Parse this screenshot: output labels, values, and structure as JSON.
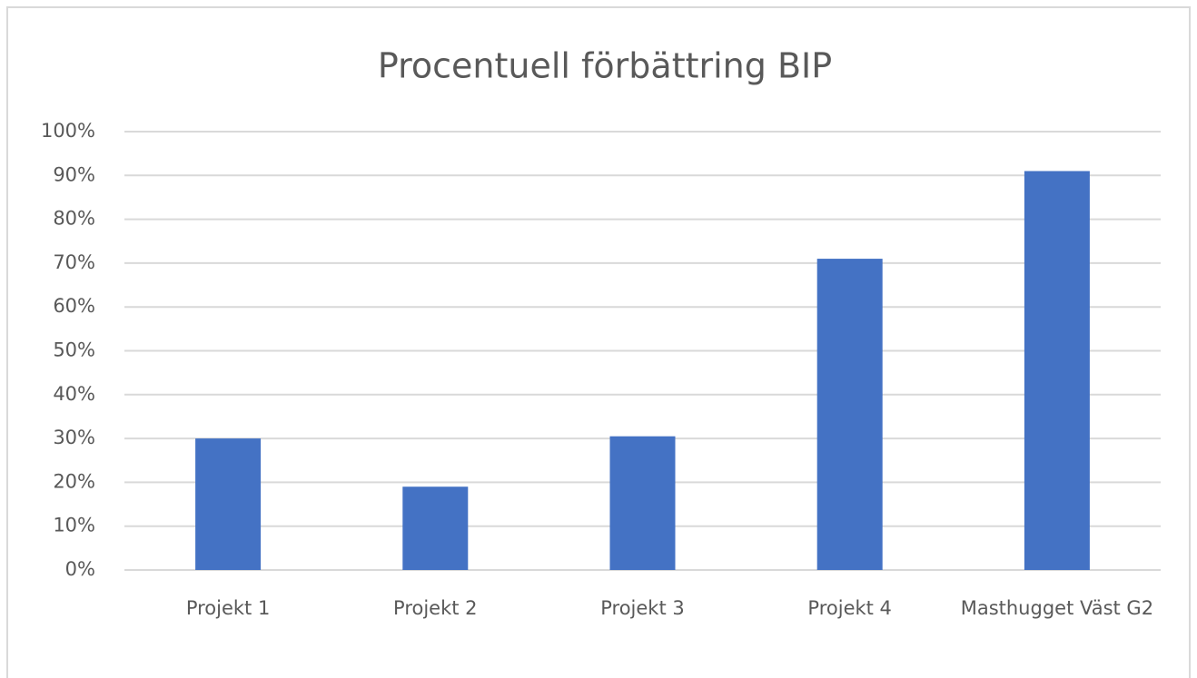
{
  "chart_data": {
    "type": "bar",
    "title": "Procentuell förbättring BIP",
    "categories": [
      "Projekt 1",
      "Projekt 2",
      "Projekt 3",
      "Projekt 4",
      "Masthugget Väst G2"
    ],
    "values": [
      30,
      19,
      30.5,
      71,
      91
    ],
    "color": "#4472c4",
    "ylim": [
      0,
      100
    ],
    "yticks": [
      {
        "value": 0,
        "label": "0%"
      },
      {
        "value": 10,
        "label": "10%"
      },
      {
        "value": 20,
        "label": "20%"
      },
      {
        "value": 30,
        "label": "30%"
      },
      {
        "value": 40,
        "label": "40%"
      },
      {
        "value": 50,
        "label": "50%"
      },
      {
        "value": 60,
        "label": "60%"
      },
      {
        "value": 70,
        "label": "70%"
      },
      {
        "value": 80,
        "label": "80%"
      },
      {
        "value": 90,
        "label": "90%"
      },
      {
        "value": 100,
        "label": "100%"
      }
    ],
    "grid": true
  }
}
